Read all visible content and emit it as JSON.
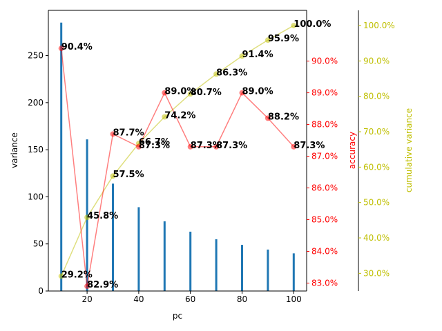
{
  "chart_data": {
    "type": "bar+line",
    "title": "",
    "xlabel": "pc",
    "ylabel": "variance",
    "ylabel_right_1": "accuracy",
    "ylabel_right_2": "cumulative variance",
    "x": [
      10,
      20,
      30,
      40,
      50,
      60,
      70,
      80,
      90,
      100
    ],
    "xlim": [
      5,
      105
    ],
    "x_ticks": [
      "20",
      "40",
      "60",
      "80",
      "100"
    ],
    "x_tick_values": [
      20,
      40,
      60,
      80,
      100
    ],
    "left_axis": {
      "ylim": [
        0,
        298
      ],
      "ticks": [
        0,
        50,
        100,
        150,
        200,
        250
      ],
      "tick_labels": [
        "0",
        "50",
        "100",
        "150",
        "200",
        "250"
      ]
    },
    "accuracy_axis": {
      "ylim": [
        82.75,
        91.6
      ],
      "ticks": [
        83,
        84,
        85,
        86,
        87,
        88,
        89,
        90
      ],
      "tick_labels": [
        "83.0%",
        "84.0%",
        "85.0%",
        "86.0%",
        "87.0%",
        "88.0%",
        "89.0%",
        "90.0%"
      ],
      "color": "#ff0000"
    },
    "cumulative_axis": {
      "ylim": [
        25.0,
        104.3
      ],
      "ticks": [
        30,
        40,
        50,
        60,
        70,
        80,
        90,
        100
      ],
      "tick_labels": [
        "30.0%",
        "40.0%",
        "50.0%",
        "60.0%",
        "70.0%",
        "80.0%",
        "90.0%",
        "100.0%"
      ],
      "color": "#bfbf00"
    },
    "series": [
      {
        "name": "variance",
        "kind": "bar",
        "axis": "left",
        "color": "#1f77b4",
        "values": [
          285,
          161,
          114,
          89,
          74,
          63,
          55,
          49,
          44,
          40
        ]
      },
      {
        "name": "accuracy",
        "kind": "line",
        "axis": "accuracy",
        "color": "#ff0000",
        "values": [
          90.4,
          82.9,
          87.7,
          87.3,
          89.0,
          87.3,
          87.3,
          89.0,
          88.2,
          87.3
        ],
        "labels": [
          "90.4%",
          "82.9%",
          "87.7%",
          "87.3%",
          "89.0%",
          "87.3%",
          "87.3%",
          "89.0%",
          "88.2%",
          "87.3%"
        ]
      },
      {
        "name": "cumulative variance",
        "kind": "line",
        "axis": "cumulative",
        "color": "#bfbf00",
        "values": [
          29.2,
          45.8,
          57.5,
          66.7,
          74.2,
          80.7,
          86.3,
          91.4,
          95.9,
          100.0
        ],
        "labels": [
          "29.2%",
          "45.8%",
          "57.5%",
          "66.7%",
          "74.2%",
          "80.7%",
          "86.3%",
          "91.4%",
          "95.9%",
          "100.0%"
        ]
      }
    ],
    "grid": false,
    "legend": "none"
  }
}
